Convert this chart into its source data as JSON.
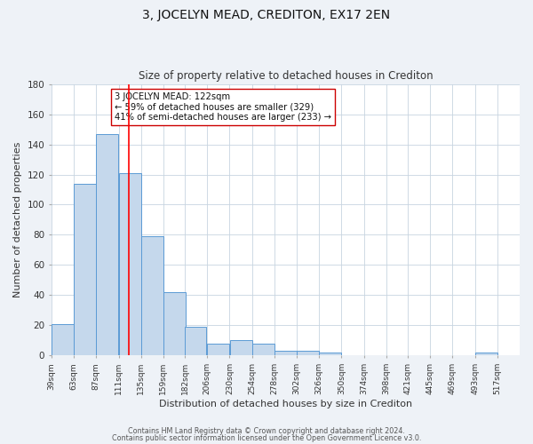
{
  "title": "3, JOCELYN MEAD, CREDITON, EX17 2EN",
  "subtitle": "Size of property relative to detached houses in Crediton",
  "xlabel": "Distribution of detached houses by size in Crediton",
  "ylabel": "Number of detached properties",
  "bar_values": [
    21,
    114,
    147,
    121,
    79,
    42,
    19,
    8,
    10,
    8,
    3,
    3,
    2,
    0,
    2
  ],
  "bar_left_edges": [
    39,
    63,
    87,
    111,
    135,
    159,
    182,
    206,
    230,
    254,
    278,
    302,
    326,
    350,
    493
  ],
  "bar_widths": [
    24,
    24,
    24,
    24,
    24,
    24,
    23,
    24,
    24,
    24,
    24,
    24,
    24,
    24,
    24
  ],
  "tick_labels": [
    "39sqm",
    "63sqm",
    "87sqm",
    "111sqm",
    "135sqm",
    "159sqm",
    "182sqm",
    "206sqm",
    "230sqm",
    "254sqm",
    "278sqm",
    "302sqm",
    "326sqm",
    "350sqm",
    "374sqm",
    "398sqm",
    "421sqm",
    "445sqm",
    "469sqm",
    "493sqm",
    "517sqm"
  ],
  "tick_positions": [
    39,
    63,
    87,
    111,
    135,
    159,
    182,
    206,
    230,
    254,
    278,
    302,
    326,
    350,
    374,
    398,
    421,
    445,
    469,
    493,
    517
  ],
  "bar_color": "#c5d8ec",
  "bar_edge_color": "#5b9bd5",
  "vline_x": 122,
  "vline_color": "red",
  "ylim": [
    0,
    180
  ],
  "yticks": [
    0,
    20,
    40,
    60,
    80,
    100,
    120,
    140,
    160,
    180
  ],
  "annotation_title": "3 JOCELYN MEAD: 122sqm",
  "annotation_line1": "← 59% of detached houses are smaller (329)",
  "annotation_line2": "41% of semi-detached houses are larger (233) →",
  "footer_line1": "Contains HM Land Registry data © Crown copyright and database right 2024.",
  "footer_line2": "Contains public sector information licensed under the Open Government Licence v3.0.",
  "bg_color": "#eef2f7",
  "plot_bg_color": "#ffffff",
  "grid_color": "#c8d4e0"
}
